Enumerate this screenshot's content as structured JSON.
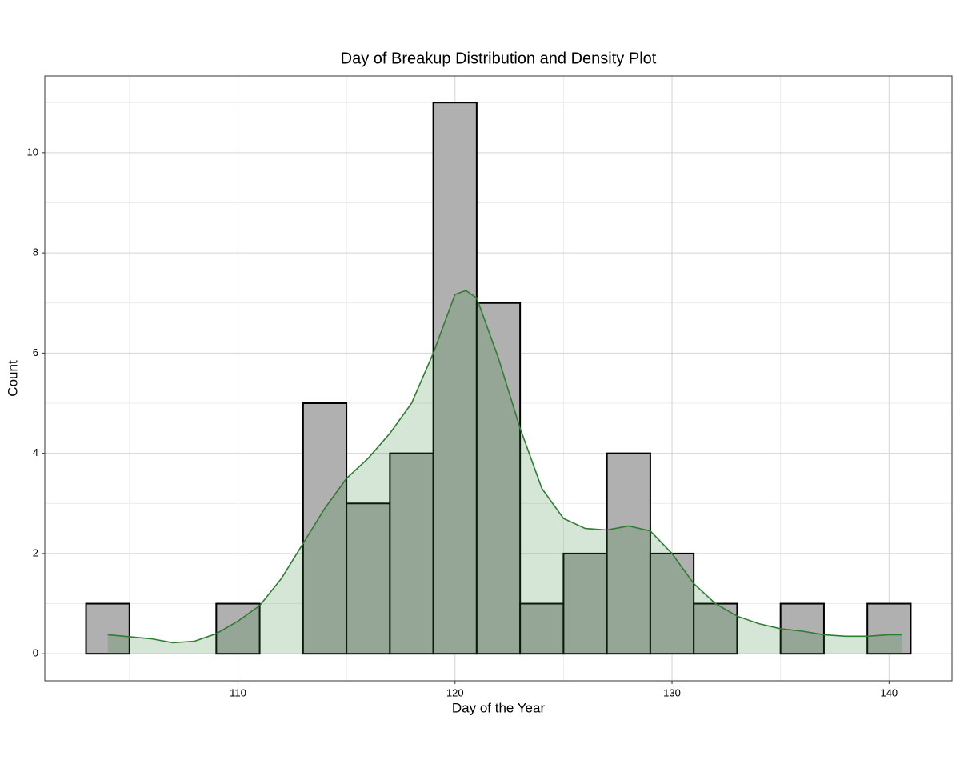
{
  "chart_data": {
    "type": "histogram",
    "title": "Day of Breakup Distribution and Density Plot",
    "x_label": "Day of the Year",
    "y_label": "Count",
    "bins": [
      103,
      105,
      107,
      109,
      111,
      113,
      115,
      117,
      119,
      121,
      123,
      125,
      127,
      129,
      131,
      133,
      135,
      137,
      139,
      141
    ],
    "counts": [
      1,
      0,
      0,
      1,
      0,
      5,
      3,
      4,
      11,
      7,
      1,
      2,
      4,
      2,
      1,
      0,
      1,
      0,
      1
    ],
    "bar_color": "#b0b0b0",
    "density": {
      "color": "#2e7d32",
      "x": [
        104,
        106,
        107,
        108,
        109,
        110,
        111,
        112,
        113,
        114,
        115,
        116,
        117,
        118,
        119,
        120,
        120.5,
        121,
        122,
        123,
        124,
        125,
        126,
        127,
        128,
        129,
        130,
        131,
        132,
        133,
        134,
        135,
        136,
        137,
        138,
        139,
        140,
        140.6
      ],
      "values": [
        0.38,
        0.3,
        0.22,
        0.25,
        0.4,
        0.65,
        0.96,
        1.5,
        2.2,
        2.9,
        3.5,
        3.9,
        4.4,
        5.0,
        6.0,
        7.17,
        7.25,
        7.1,
        5.9,
        4.5,
        3.3,
        2.7,
        2.5,
        2.47,
        2.55,
        2.45,
        2.0,
        1.4,
        1.0,
        0.75,
        0.6,
        0.5,
        0.45,
        0.38,
        0.35,
        0.35,
        0.38,
        0.38
      ]
    },
    "xlim": [
      101.1,
      142.9
    ],
    "ylim": [
      -0.54,
      11.53
    ],
    "xticks": [
      110,
      120,
      130,
      140
    ],
    "yticks": [
      0,
      2,
      4,
      6,
      8,
      10
    ],
    "grid": true
  }
}
